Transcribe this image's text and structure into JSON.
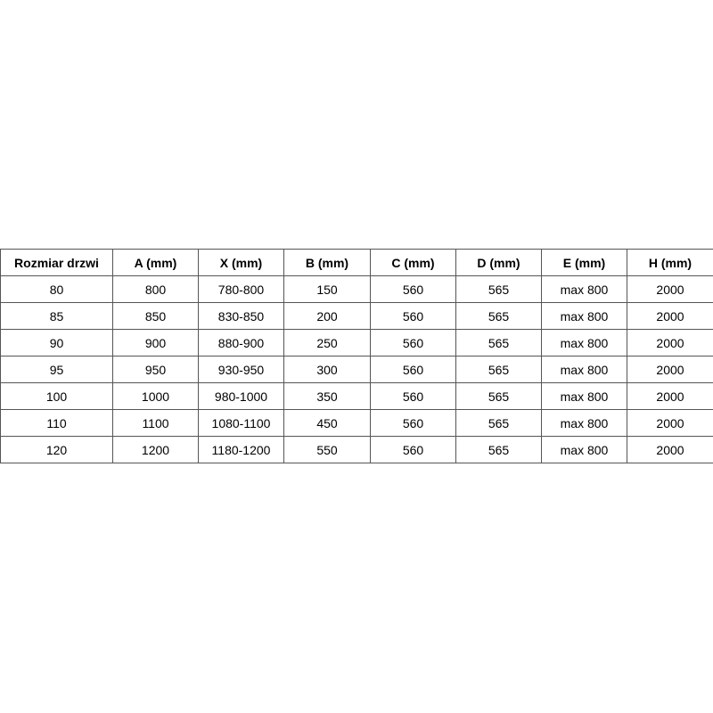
{
  "table": {
    "headers": [
      "Rozmiar drzwi",
      "A (mm)",
      "X (mm)",
      "B (mm)",
      "C (mm)",
      "D (mm)",
      "E (mm)",
      "H (mm)"
    ],
    "rows": [
      [
        "80",
        "800",
        "780-800",
        "150",
        "560",
        "565",
        "max 800",
        "2000"
      ],
      [
        "85",
        "850",
        "830-850",
        "200",
        "560",
        "565",
        "max 800",
        "2000"
      ],
      [
        "90",
        "900",
        "880-900",
        "250",
        "560",
        "565",
        "max 800",
        "2000"
      ],
      [
        "95",
        "950",
        "930-950",
        "300",
        "560",
        "565",
        "max 800",
        "2000"
      ],
      [
        "100",
        "1000",
        "980-1000",
        "350",
        "560",
        "565",
        "max 800",
        "2000"
      ],
      [
        "110",
        "1100",
        "1080-1100",
        "450",
        "560",
        "565",
        "max 800",
        "2000"
      ],
      [
        "120",
        "1200",
        "1180-1200",
        "550",
        "560",
        "565",
        "max 800",
        "2000"
      ]
    ]
  }
}
